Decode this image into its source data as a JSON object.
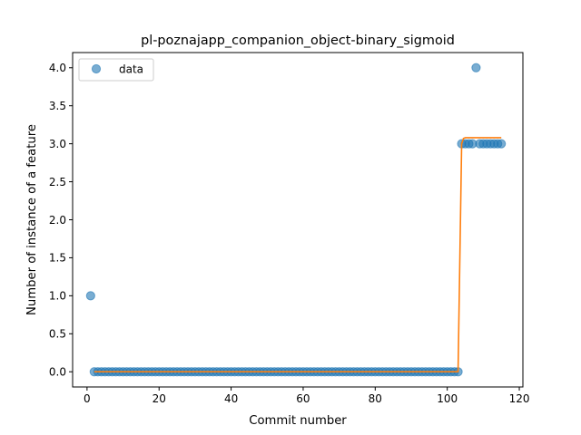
{
  "chart_data": {
    "type": "scatter",
    "title": "pl-poznajapp_companion_object-binary_sigmoid",
    "xlabel": "Commit number",
    "ylabel": "Number of instance of a feature",
    "xlim": [
      -4,
      121
    ],
    "ylim": [
      -0.2,
      4.2
    ],
    "xticks": [
      0,
      20,
      40,
      60,
      80,
      100,
      120
    ],
    "yticks": [
      0.0,
      0.5,
      1.0,
      1.5,
      2.0,
      2.5,
      3.0,
      3.5,
      4.0
    ],
    "xtick_labels": [
      "0",
      "20",
      "40",
      "60",
      "80",
      "100",
      "120"
    ],
    "ytick_labels": [
      "0.0",
      "0.5",
      "1.0",
      "1.5",
      "2.0",
      "2.5",
      "3.0",
      "3.5",
      "4.0"
    ],
    "legend": {
      "position": "top-left",
      "entries": [
        "data"
      ]
    },
    "grid": false,
    "series": [
      {
        "name": "data",
        "kind": "scatter",
        "color": "#1f77b4",
        "x": [
          1,
          2,
          3,
          4,
          5,
          6,
          7,
          8,
          9,
          10,
          11,
          12,
          13,
          14,
          15,
          16,
          17,
          18,
          19,
          20,
          21,
          22,
          23,
          24,
          25,
          26,
          27,
          28,
          29,
          30,
          31,
          32,
          33,
          34,
          35,
          36,
          37,
          38,
          39,
          40,
          41,
          42,
          43,
          44,
          45,
          46,
          47,
          48,
          49,
          50,
          51,
          52,
          53,
          54,
          55,
          56,
          57,
          58,
          59,
          60,
          61,
          62,
          63,
          64,
          65,
          66,
          67,
          68,
          69,
          70,
          71,
          72,
          73,
          74,
          75,
          76,
          77,
          78,
          79,
          80,
          81,
          82,
          83,
          84,
          85,
          86,
          87,
          88,
          89,
          90,
          91,
          92,
          93,
          94,
          95,
          96,
          97,
          98,
          99,
          100,
          101,
          102,
          103,
          104,
          105,
          106,
          107,
          108,
          109,
          110,
          111,
          112,
          113,
          114,
          115
        ],
        "y": [
          1,
          0,
          0,
          0,
          0,
          0,
          0,
          0,
          0,
          0,
          0,
          0,
          0,
          0,
          0,
          0,
          0,
          0,
          0,
          0,
          0,
          0,
          0,
          0,
          0,
          0,
          0,
          0,
          0,
          0,
          0,
          0,
          0,
          0,
          0,
          0,
          0,
          0,
          0,
          0,
          0,
          0,
          0,
          0,
          0,
          0,
          0,
          0,
          0,
          0,
          0,
          0,
          0,
          0,
          0,
          0,
          0,
          0,
          0,
          0,
          0,
          0,
          0,
          0,
          0,
          0,
          0,
          0,
          0,
          0,
          0,
          0,
          0,
          0,
          0,
          0,
          0,
          0,
          0,
          0,
          0,
          0,
          0,
          0,
          0,
          0,
          0,
          0,
          0,
          0,
          0,
          0,
          0,
          0,
          0,
          0,
          0,
          0,
          0,
          0,
          0,
          0,
          0,
          3,
          3,
          3,
          3,
          4,
          3,
          3,
          3,
          3,
          3,
          3,
          3
        ]
      },
      {
        "kind": "line",
        "color": "#ff7f0e",
        "x": [
          2,
          103,
          104,
          104.5,
          105,
          115
        ],
        "y": [
          0.0,
          0.0,
          3.0,
          3.07,
          3.08,
          3.08
        ]
      }
    ]
  }
}
